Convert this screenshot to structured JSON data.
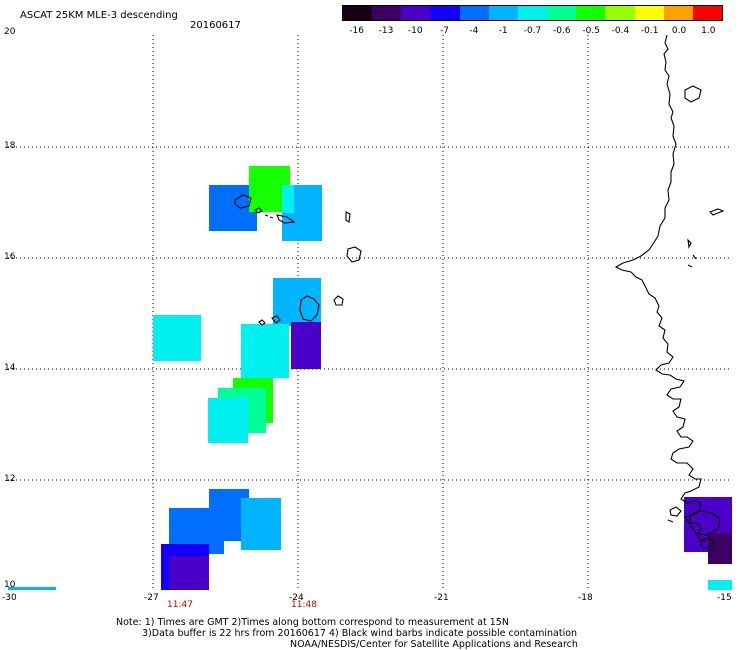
{
  "header": {
    "title": "ASCAT 25KM MLE-3 descending",
    "date": "20160617"
  },
  "colorbar": {
    "labels": [
      "-16",
      "-13",
      "-10",
      "-7",
      "-4",
      "-1",
      "-0.7",
      "-0.6",
      "-0.5",
      "-0.4",
      "-0.1",
      "0.0",
      "1.0"
    ],
    "colors": [
      "#1a0014",
      "#3c0064",
      "#4b00c8",
      "#1400ff",
      "#006eff",
      "#00b4ff",
      "#00f0f0",
      "#00ff96",
      "#14ff00",
      "#96ff00",
      "#ffff00",
      "#ffa000",
      "#ff0000"
    ]
  },
  "axes": {
    "x_ticks": [
      "-30",
      "-27",
      "-24",
      "-21",
      "-18",
      "-15"
    ],
    "y_ticks": [
      "20",
      "18",
      "16",
      "14",
      "12",
      "10"
    ],
    "times": [
      "11:47",
      "11:48"
    ]
  },
  "notes": {
    "line1": "Note: 1) Times are GMT 2)Times along bottom correspond to measurement at 15N",
    "line2": "3)Data buffer is 22 hrs from 20160617 4) Black wind barbs indicate possible contamination",
    "line3": "NOAA/NESDIS/Center for Satellite Applications and Research"
  }
}
